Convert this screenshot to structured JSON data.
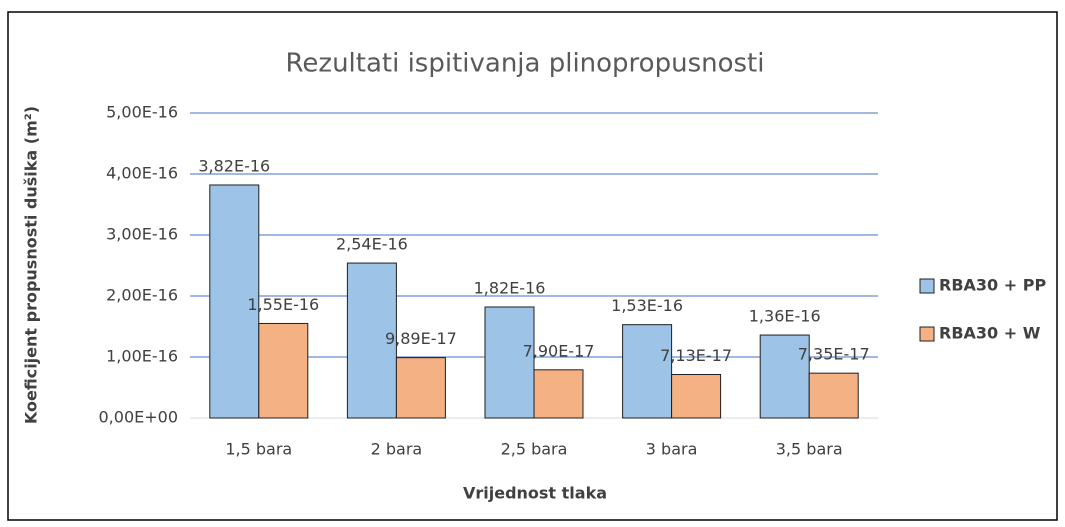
{
  "chart_data": {
    "type": "bar",
    "title": "Rezultati ispitivanja plinopropusnosti",
    "x_label": "Vrijednost tlaka",
    "y_label": "Koeficijent propusnosti dušika (m²)",
    "categories": [
      "1,5 bara",
      "2 bara",
      "2,5 bara",
      "3 bara",
      "3,5 bara"
    ],
    "series": [
      {
        "name": "RBA30 + PP",
        "color": "#9dc3e6",
        "values": [
          3.82e-16,
          2.54e-16,
          1.82e-16,
          1.53e-16,
          1.36e-16
        ],
        "value_labels": [
          "3,82E-16",
          "2,54E-16",
          "1,82E-16",
          "1,53E-16",
          "1,36E-16"
        ]
      },
      {
        "name": "RBA30 + W",
        "color": "#f4b183",
        "values": [
          1.55e-16,
          9.89e-17,
          7.9e-17,
          7.13e-17,
          7.35e-17
        ],
        "value_labels": [
          "1,55E-16",
          "9,89E-17",
          "7,90E-17",
          "7,13E-17",
          "7,35E-17"
        ]
      }
    ],
    "ylim": [
      0,
      5e-16
    ],
    "yticks": [
      {
        "value": 0,
        "label": "0,00E+00"
      },
      {
        "value": 1e-16,
        "label": "1,00E-16"
      },
      {
        "value": 2e-16,
        "label": "2,00E-16"
      },
      {
        "value": 3e-16,
        "label": "3,00E-16"
      },
      {
        "value": 4e-16,
        "label": "4,00E-16"
      },
      {
        "value": 5e-16,
        "label": "5,00E-16"
      }
    ],
    "grid": true,
    "legend": "right"
  }
}
